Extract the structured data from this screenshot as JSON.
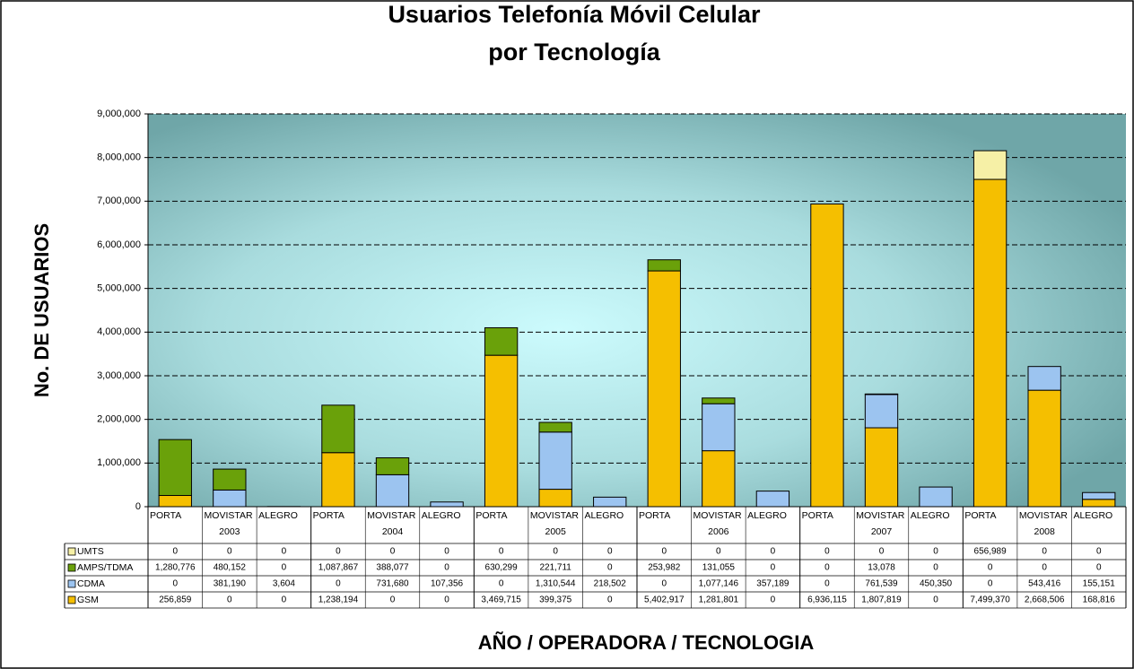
{
  "chart_data": {
    "type": "stacked_bar",
    "title": "Usuarios Telefonía Móvil Celular",
    "subtitle": "por Tecnología",
    "y_label": "No. DE USUARIOS",
    "x_label": "AÑO / OPERADORA / TECNOLOGIA",
    "categories": [
      "PORTA",
      "MOVISTAR",
      "ALEGRO",
      "PORTA",
      "MOVISTAR",
      "ALEGRO",
      "PORTA",
      "MOVISTAR",
      "ALEGRO",
      "PORTA",
      "MOVISTAR",
      "ALEGRO",
      "PORTA",
      "MOVISTAR",
      "ALEGRO",
      "PORTA",
      "MOVISTAR",
      "ALEGRO"
    ],
    "years": [
      "2003",
      "2004",
      "2005",
      "2006",
      "2007",
      "2008"
    ],
    "ylim": [
      0,
      9000000
    ],
    "yticks": [
      {
        "value": 0,
        "label": "0"
      },
      {
        "value": 1000000,
        "label": "1,000,000"
      },
      {
        "value": 2000000,
        "label": "2,000,000"
      },
      {
        "value": 3000000,
        "label": "3,000,000"
      },
      {
        "value": 4000000,
        "label": "4,000,000"
      },
      {
        "value": 5000000,
        "label": "5,000,000"
      },
      {
        "value": 6000000,
        "label": "6,000,000"
      },
      {
        "value": 7000000,
        "label": "7,000,000"
      },
      {
        "value": 8000000,
        "label": "8,000,000"
      },
      {
        "value": 9000000,
        "label": "9,000,000"
      }
    ],
    "grid": true,
    "series": [
      {
        "name": "UMTS",
        "color": "#f6f0a6",
        "values": [
          0,
          0,
          0,
          0,
          0,
          0,
          0,
          0,
          0,
          0,
          0,
          0,
          0,
          0,
          0,
          656989,
          0,
          0
        ],
        "value_labels": [
          "0",
          "0",
          "0",
          "0",
          "0",
          "0",
          "0",
          "0",
          "0",
          "0",
          "0",
          "0",
          "0",
          "0",
          "0",
          "656,989",
          "0",
          "0"
        ]
      },
      {
        "name": "AMPS/TDMA",
        "color": "#6aa10a",
        "values": [
          1280776,
          480152,
          0,
          1087867,
          388077,
          0,
          630299,
          221711,
          0,
          253982,
          131055,
          0,
          0,
          13078,
          0,
          0,
          0,
          0
        ],
        "value_labels": [
          "1,280,776",
          "480,152",
          "0",
          "1,087,867",
          "388,077",
          "0",
          "630,299",
          "221,711",
          "0",
          "253,982",
          "131,055",
          "0",
          "0",
          "13,078",
          "0",
          "0",
          "0",
          "0"
        ]
      },
      {
        "name": "CDMA",
        "color": "#9cc4f0",
        "values": [
          0,
          381190,
          3604,
          0,
          731680,
          107356,
          0,
          1310544,
          218502,
          0,
          1077146,
          357189,
          0,
          761539,
          450350,
          0,
          543416,
          155151
        ],
        "value_labels": [
          "0",
          "381,190",
          "3,604",
          "0",
          "731,680",
          "107,356",
          "0",
          "1,310,544",
          "218,502",
          "0",
          "1,077,146",
          "357,189",
          "0",
          "761,539",
          "450,350",
          "0",
          "543,416",
          "155,151"
        ]
      },
      {
        "name": "GSM",
        "color": "#f5bf00",
        "values": [
          256859,
          0,
          0,
          1238194,
          0,
          0,
          3469715,
          399375,
          0,
          5402917,
          1281801,
          0,
          6936115,
          1807819,
          0,
          7499370,
          2668506,
          168816
        ],
        "value_labels": [
          "256,859",
          "0",
          "0",
          "1,238,194",
          "0",
          "0",
          "3,469,715",
          "399,375",
          "0",
          "5,402,917",
          "1,281,801",
          "0",
          "6,936,115",
          "1,807,819",
          "0",
          "7,499,370",
          "2,668,506",
          "168,816"
        ]
      }
    ]
  }
}
